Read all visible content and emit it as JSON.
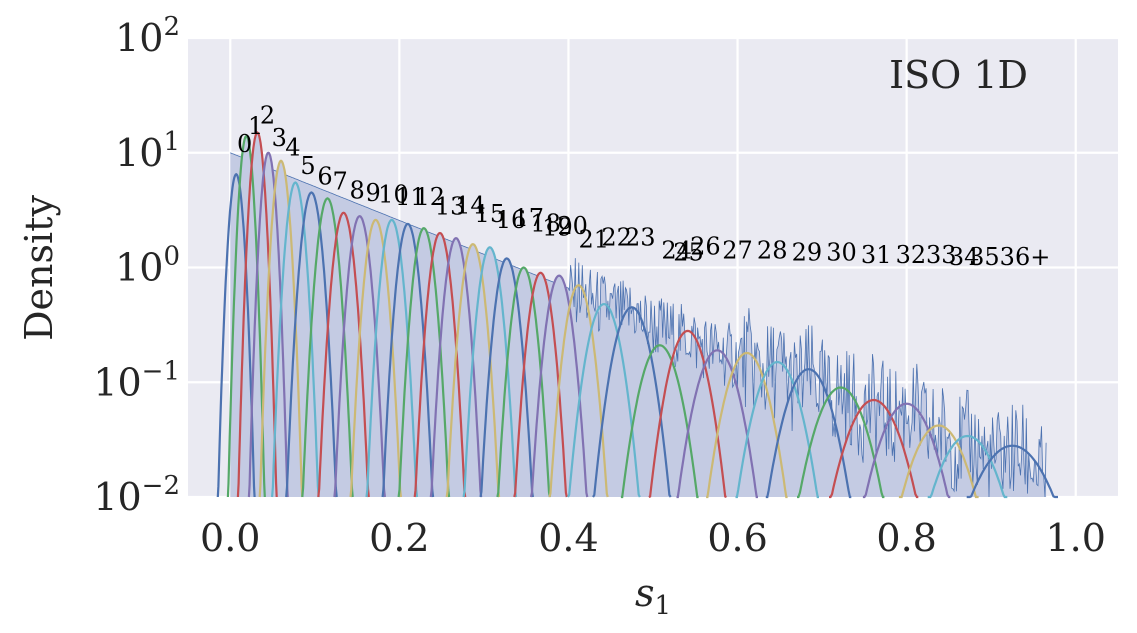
{
  "chart_data": {
    "type": "line",
    "title": "",
    "annotation": "ISO 1D",
    "xlabel": "s",
    "xlabel_subscript": "1",
    "ylabel": "Density",
    "xlim": [
      -0.05,
      1.05
    ],
    "ylim": [
      0.01,
      100
    ],
    "yscale": "log",
    "grid": true,
    "legend": "none",
    "background_color": "#eaeaf2",
    "x_ticks": [
      {
        "value": 0.0,
        "label": "0.0"
      },
      {
        "value": 0.2,
        "label": "0.2"
      },
      {
        "value": 0.4,
        "label": "0.4"
      },
      {
        "value": 0.6,
        "label": "0.6"
      },
      {
        "value": 0.8,
        "label": "0.8"
      },
      {
        "value": 1.0,
        "label": "1.0"
      }
    ],
    "y_ticks": [
      {
        "value": 0.01,
        "base": "10",
        "exp": "−2"
      },
      {
        "value": 0.1,
        "base": "10",
        "exp": "−1"
      },
      {
        "value": 1,
        "base": "10",
        "exp": "0"
      },
      {
        "value": 10,
        "base": "10",
        "exp": "1"
      },
      {
        "value": 100,
        "base": "10",
        "exp": "2"
      }
    ],
    "histogram": {
      "color": "#4c72b0",
      "fill": "#c4cbe3"
    },
    "palette": [
      "#4c72b0",
      "#55a868",
      "#c44e52",
      "#8172b2",
      "#ccb974",
      "#64b5cd"
    ],
    "peaks": [
      {
        "label": "0",
        "center": 0.007,
        "peak": 6.5,
        "label_x": 0.017,
        "label_y": 10.2
      },
      {
        "label": "1",
        "center": 0.019,
        "peak": 14,
        "label_x": 0.03,
        "label_y": 14.5
      },
      {
        "label": "2",
        "center": 0.032,
        "peak": 15,
        "label_x": 0.044,
        "label_y": 18
      },
      {
        "label": "3",
        "center": 0.045,
        "peak": 10,
        "label_x": 0.058,
        "label_y": 11.5
      },
      {
        "label": "4",
        "center": 0.06,
        "peak": 8.5,
        "label_x": 0.074,
        "label_y": 9.5
      },
      {
        "label": "5",
        "center": 0.077,
        "peak": 5.5,
        "label_x": 0.092,
        "label_y": 6.5
      },
      {
        "label": "6",
        "center": 0.096,
        "peak": 4.5,
        "label_x": 0.112,
        "label_y": 5.3
      },
      {
        "label": "7",
        "center": 0.115,
        "peak": 4.0,
        "label_x": 0.13,
        "label_y": 4.8
      },
      {
        "label": "8",
        "center": 0.134,
        "peak": 3.0,
        "label_x": 0.15,
        "label_y": 4.0
      },
      {
        "label": "9",
        "center": 0.153,
        "peak": 2.8,
        "label_x": 0.169,
        "label_y": 3.8
      },
      {
        "label": "10",
        "center": 0.172,
        "peak": 2.6,
        "label_x": 0.193,
        "label_y": 3.7
      },
      {
        "label": "11",
        "center": 0.191,
        "peak": 2.6,
        "label_x": 0.213,
        "label_y": 3.5
      },
      {
        "label": "12",
        "center": 0.21,
        "peak": 2.4,
        "label_x": 0.236,
        "label_y": 3.5
      },
      {
        "label": "13",
        "center": 0.229,
        "peak": 2.2,
        "label_x": 0.26,
        "label_y": 2.9
      },
      {
        "label": "14",
        "center": 0.248,
        "peak": 2.0,
        "label_x": 0.284,
        "label_y": 2.95
      },
      {
        "label": "15",
        "center": 0.267,
        "peak": 1.8,
        "label_x": 0.307,
        "label_y": 2.5
      },
      {
        "label": "16",
        "center": 0.287,
        "peak": 1.6,
        "label_x": 0.332,
        "label_y": 2.2
      },
      {
        "label": "17",
        "center": 0.307,
        "peak": 1.5,
        "label_x": 0.353,
        "label_y": 2.3
      },
      {
        "label": "18",
        "center": 0.327,
        "peak": 1.2,
        "label_x": 0.373,
        "label_y": 2.05
      },
      {
        "label": "19",
        "center": 0.347,
        "peak": 1.0,
        "label_x": 0.387,
        "label_y": 1.9
      },
      {
        "label": "20",
        "center": 0.367,
        "peak": 0.9,
        "label_x": 0.405,
        "label_y": 1.95
      },
      {
        "label": "21",
        "center": 0.389,
        "peak": 0.85,
        "label_x": 0.43,
        "label_y": 1.5
      },
      {
        "label": "22",
        "center": 0.412,
        "peak": 0.7,
        "label_x": 0.457,
        "label_y": 1.55
      },
      {
        "label": "23",
        "center": 0.442,
        "peak": 0.48,
        "label_x": 0.485,
        "label_y": 1.55
      },
      {
        "label": "24",
        "center": 0.475,
        "peak": 0.45,
        "label_x": 0.528,
        "label_y": 1.2
      },
      {
        "label": "25",
        "center": 0.508,
        "peak": 0.21,
        "label_x": 0.542,
        "label_y": 1.15
      },
      {
        "label": "26",
        "center": 0.541,
        "peak": 0.28,
        "label_x": 0.562,
        "label_y": 1.3
      },
      {
        "label": "27",
        "center": 0.576,
        "peak": 0.19,
        "label_x": 0.6,
        "label_y": 1.2
      },
      {
        "label": "28",
        "center": 0.611,
        "peak": 0.18,
        "label_x": 0.641,
        "label_y": 1.2
      },
      {
        "label": "29",
        "center": 0.647,
        "peak": 0.15,
        "label_x": 0.682,
        "label_y": 1.15
      },
      {
        "label": "30",
        "center": 0.684,
        "peak": 0.13,
        "label_x": 0.723,
        "label_y": 1.15
      },
      {
        "label": "31",
        "center": 0.722,
        "peak": 0.09,
        "label_x": 0.764,
        "label_y": 1.1
      },
      {
        "label": "32",
        "center": 0.761,
        "peak": 0.07,
        "label_x": 0.805,
        "label_y": 1.1
      },
      {
        "label": "33",
        "center": 0.8,
        "peak": 0.065,
        "label_x": 0.841,
        "label_y": 1.1
      },
      {
        "label": "34",
        "center": 0.838,
        "peak": 0.042,
        "label_x": 0.868,
        "label_y": 1.05
      },
      {
        "label": "35",
        "center": 0.872,
        "peak": 0.034,
        "label_x": 0.892,
        "label_y": 1.05
      },
      {
        "label": "36+",
        "center": 0.925,
        "peak": 0.028,
        "label_x": 0.94,
        "label_y": 1.05
      }
    ]
  }
}
